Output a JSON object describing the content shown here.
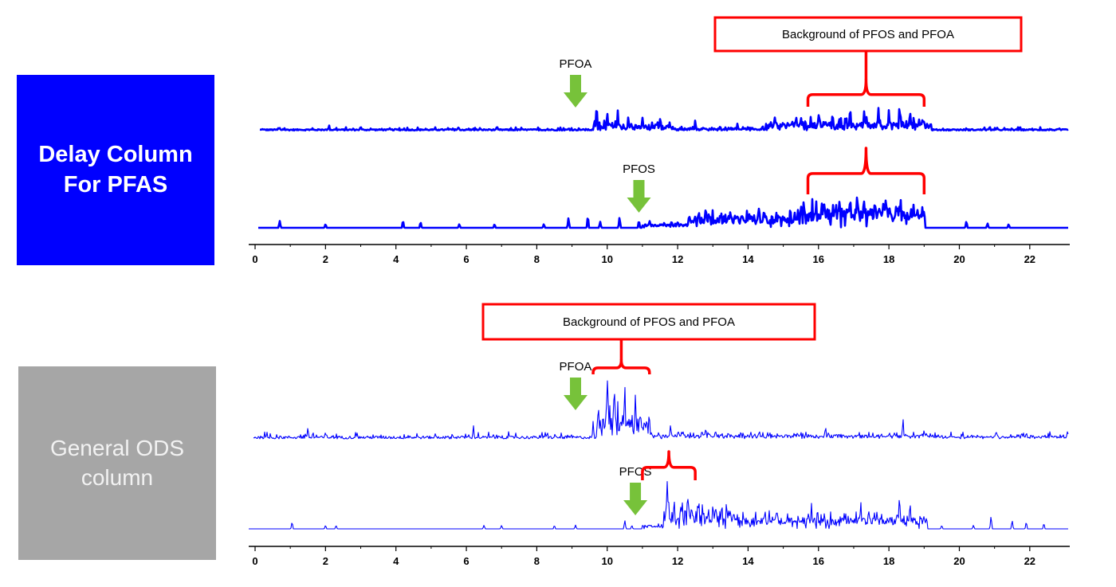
{
  "colors": {
    "trace": "#0000ff",
    "annotation": "#ff0000",
    "arrow": "#77c23a",
    "delay_box": "#0000ff",
    "ods_box": "#a6a6a6"
  },
  "labels": {
    "delay_column": "Delay Column\nFor PFAS",
    "general_ods": "General ODS\ncolumn"
  },
  "chart_data": [
    {
      "type": "line",
      "panel": "Delay Column For PFAS",
      "xlim": [
        0,
        23
      ],
      "x_ticks": [
        0,
        2,
        4,
        6,
        8,
        10,
        12,
        14,
        16,
        18,
        20,
        22
      ],
      "grid": false,
      "series": [
        {
          "name": "PFOA",
          "style": "bold",
          "noise": [
            0.04,
            0.09
          ],
          "peaks": [
            [
              0.2,
              0.08
            ],
            [
              0.7,
              0.1
            ],
            [
              1.3,
              0.08
            ],
            [
              2.1,
              0.18
            ],
            [
              3.0,
              0.16
            ],
            [
              3.6,
              0.08
            ],
            [
              4.9,
              0.08
            ],
            [
              6.2,
              0.09
            ],
            [
              7.1,
              0.08
            ],
            [
              8.3,
              0.1
            ],
            [
              9.2,
              0.12
            ],
            [
              9.7,
              0.7
            ],
            [
              10.0,
              0.5
            ],
            [
              10.3,
              0.5
            ],
            [
              10.6,
              0.4
            ],
            [
              11.0,
              0.35
            ],
            [
              11.5,
              0.3
            ],
            [
              12.5,
              0.3
            ],
            [
              13.7,
              0.22
            ],
            [
              15.5,
              0.4
            ],
            [
              16.0,
              0.45
            ],
            [
              16.4,
              0.5
            ],
            [
              16.9,
              0.65
            ],
            [
              17.3,
              0.55
            ],
            [
              17.7,
              0.6
            ],
            [
              18.0,
              0.55
            ],
            [
              18.3,
              0.7
            ],
            [
              18.6,
              0.55
            ],
            [
              19.0,
              0.3
            ],
            [
              22.3,
              0.12
            ]
          ],
          "bands": [
            [
              9.6,
              11.8,
              0.3
            ],
            [
              11.8,
              14.5,
              0.15
            ],
            [
              14.5,
              19.2,
              0.4
            ]
          ]
        },
        {
          "name": "PFOS",
          "style": "bold",
          "noise": [
            0.0,
            0.0
          ],
          "peaks": [
            [
              0.7,
              0.09
            ],
            [
              2.0,
              0.05
            ],
            [
              4.2,
              0.1
            ],
            [
              4.7,
              0.08
            ],
            [
              5.8,
              0.05
            ],
            [
              6.8,
              0.05
            ],
            [
              8.2,
              0.05
            ],
            [
              8.9,
              0.13
            ],
            [
              9.45,
              0.16
            ],
            [
              9.8,
              0.08
            ],
            [
              10.35,
              0.14
            ],
            [
              10.9,
              0.1
            ],
            [
              11.2,
              0.1
            ],
            [
              12.6,
              0.25
            ],
            [
              12.8,
              0.3
            ],
            [
              13.5,
              0.25
            ],
            [
              14.3,
              0.3
            ],
            [
              14.8,
              0.22
            ],
            [
              15.2,
              0.3
            ],
            [
              15.5,
              0.33
            ],
            [
              16.1,
              0.35
            ],
            [
              16.6,
              0.4
            ],
            [
              16.9,
              0.45
            ],
            [
              17.1,
              0.5
            ],
            [
              17.3,
              0.38
            ],
            [
              17.6,
              0.4
            ],
            [
              17.9,
              0.42
            ],
            [
              18.3,
              0.35
            ],
            [
              18.7,
              0.3
            ],
            [
              19.0,
              0.25
            ],
            [
              20.2,
              0.09
            ],
            [
              20.8,
              0.06
            ],
            [
              21.4,
              0.05
            ]
          ],
          "bands": [
            [
              11.0,
              12.3,
              0.08
            ],
            [
              12.3,
              15.5,
              0.25
            ],
            [
              15.5,
              19.0,
              0.4
            ]
          ]
        }
      ],
      "annotations": [
        {
          "text": "PFOA",
          "type": "arrow",
          "series": 0,
          "x": 9.1
        },
        {
          "text": "PFOS",
          "type": "arrow",
          "series": 1,
          "x": 10.9
        },
        {
          "text": "Background of PFOS and PFOA",
          "type": "bracket-box",
          "x_range": [
            15.7,
            19.0
          ]
        }
      ]
    },
    {
      "type": "line",
      "panel": "General ODS column",
      "xlim": [
        0,
        23
      ],
      "x_ticks": [
        0,
        2,
        4,
        6,
        8,
        10,
        12,
        14,
        16,
        18,
        20,
        22
      ],
      "grid": false,
      "series": [
        {
          "name": "PFOA",
          "style": "thin",
          "noise": [
            0.02,
            0.08
          ],
          "peaks": [
            [
              1.5,
              0.18
            ],
            [
              2.0,
              0.12
            ],
            [
              2.9,
              0.1
            ],
            [
              4.6,
              0.1
            ],
            [
              5.6,
              0.1
            ],
            [
              6.2,
              0.2
            ],
            [
              7.4,
              0.1
            ],
            [
              8.3,
              0.12
            ],
            [
              9.6,
              0.25
            ],
            [
              10.0,
              0.9
            ],
            [
              10.2,
              0.8
            ],
            [
              10.5,
              0.75
            ],
            [
              10.8,
              0.6
            ],
            [
              11.2,
              0.3
            ],
            [
              11.8,
              0.22
            ],
            [
              12.8,
              0.18
            ],
            [
              16.2,
              0.2
            ],
            [
              18.4,
              0.3
            ],
            [
              19.0,
              0.15
            ],
            [
              21.9,
              0.1
            ]
          ],
          "bands": [
            [
              9.7,
              11.2,
              0.55
            ],
            [
              11.2,
              19.5,
              0.12
            ],
            [
              19.5,
              23.0,
              0.08
            ]
          ]
        },
        {
          "name": "PFOS",
          "style": "thin",
          "noise": [
            0.0,
            0.0
          ],
          "peaks": [
            [
              1.05,
              0.1
            ],
            [
              2.0,
              0.05
            ],
            [
              2.3,
              0.05
            ],
            [
              6.5,
              0.05
            ],
            [
              7.0,
              0.05
            ],
            [
              8.5,
              0.05
            ],
            [
              9.1,
              0.05
            ],
            [
              10.5,
              0.12
            ],
            [
              10.7,
              0.05
            ],
            [
              11.7,
              0.7
            ],
            [
              11.9,
              0.45
            ],
            [
              12.3,
              0.5
            ],
            [
              12.6,
              0.45
            ],
            [
              13.0,
              0.35
            ],
            [
              13.5,
              0.3
            ],
            [
              14.6,
              0.25
            ],
            [
              15.2,
              0.12
            ],
            [
              15.8,
              0.35
            ],
            [
              17.2,
              0.4
            ],
            [
              18.3,
              0.5
            ],
            [
              18.6,
              0.4
            ],
            [
              19.0,
              0.2
            ],
            [
              19.5,
              0.05
            ],
            [
              20.4,
              0.05
            ],
            [
              20.9,
              0.18
            ],
            [
              21.5,
              0.12
            ],
            [
              21.9,
              0.1
            ],
            [
              22.4,
              0.08
            ]
          ],
          "bands": [
            [
              11.0,
              11.6,
              0.08
            ],
            [
              11.6,
              13.8,
              0.4
            ],
            [
              13.8,
              19.1,
              0.25
            ]
          ]
        }
      ],
      "annotations": [
        {
          "text": "PFOA",
          "type": "arrow",
          "series": 0,
          "x": 9.1
        },
        {
          "text": "PFOS",
          "type": "arrow",
          "series": 1,
          "x": 10.8
        },
        {
          "text": "Background of PFOS and PFOA",
          "type": "bracket-box",
          "x_range": [
            9.6,
            11.2
          ]
        },
        {
          "text": "",
          "type": "bracket",
          "x_range": [
            11.0,
            12.5
          ]
        }
      ]
    }
  ]
}
